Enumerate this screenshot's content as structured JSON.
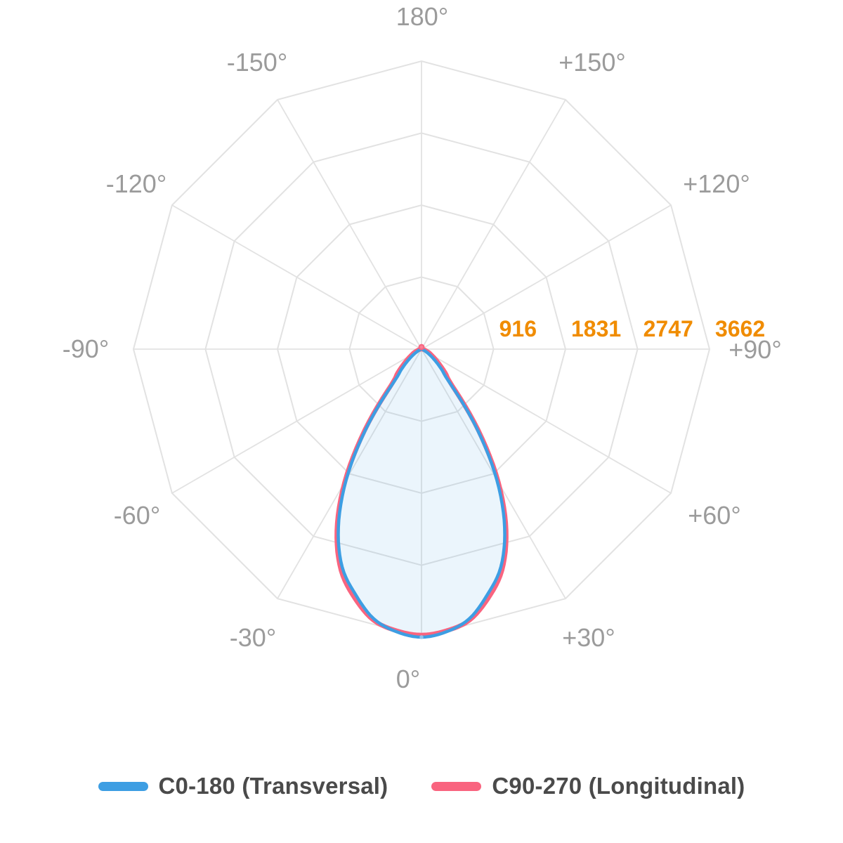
{
  "chart_data": {
    "type": "polar",
    "kind": "photometric-intensity-distribution",
    "radial_max": 3662,
    "radial_ticks": [
      916,
      1831,
      2747,
      3662
    ],
    "tick_color": "#F08C00",
    "angle_label_color": "#9B9B9B",
    "grid_color": "#E2E2E2",
    "angle_step_deg": 30,
    "angle_labels": [
      {
        "angle": 180,
        "label": "180°"
      },
      {
        "angle": -150,
        "label": "-150°"
      },
      {
        "angle": 150,
        "label": "+150°"
      },
      {
        "angle": -120,
        "label": "-120°"
      },
      {
        "angle": 120,
        "label": "+120°"
      },
      {
        "angle": -90,
        "label": "-90°"
      },
      {
        "angle": 90,
        "label": "+90°"
      },
      {
        "angle": -60,
        "label": "-60°"
      },
      {
        "angle": 60,
        "label": "+60°"
      },
      {
        "angle": -30,
        "label": "-30°"
      },
      {
        "angle": 30,
        "label": "+30°"
      },
      {
        "angle": 0,
        "label": "0°"
      }
    ],
    "gamma_angles_deg": [
      0,
      5,
      10,
      15,
      20,
      25,
      30,
      35,
      40,
      45,
      50,
      55,
      60,
      65,
      70,
      75,
      80,
      85,
      90
    ],
    "series": [
      {
        "name": "C0-180 (Transversal)",
        "color": "#3D9EE3",
        "fill": "rgba(62,158,227,0.10)",
        "symmetric": true,
        "intensities_cd": [
          3662,
          3608,
          3483,
          3233,
          2948,
          2501,
          1911,
          1215,
          554,
          357,
          223,
          134,
          71,
          36,
          18,
          9,
          4,
          2,
          0
        ]
      },
      {
        "name": "C90-270 (Longitudinal)",
        "color": "#F9647F",
        "fill": "none",
        "symmetric": true,
        "intensities_cd": [
          3635,
          3595,
          3501,
          3278,
          2992,
          2546,
          1956,
          1259,
          612,
          429,
          295,
          205,
          143,
          107,
          63,
          45,
          22,
          9,
          0
        ]
      }
    ]
  },
  "legend": {
    "items": [
      {
        "label": "C0-180 (Transversal)",
        "color": "#3D9EE3"
      },
      {
        "label": "C90-270 (Longitudinal)",
        "color": "#F9647F"
      }
    ]
  }
}
